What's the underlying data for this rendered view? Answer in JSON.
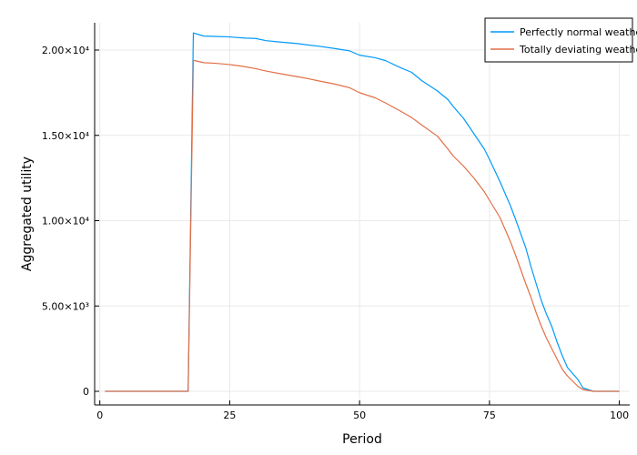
{
  "chart_data": {
    "type": "line",
    "xlabel": "Period",
    "ylabel": "Aggregated utility",
    "xlim": [
      -1,
      102
    ],
    "ylim": [
      -800,
      21600
    ],
    "xticks": [
      0,
      25,
      50,
      75,
      100
    ],
    "xtick_labels": [
      "0",
      "25",
      "50",
      "75",
      "100"
    ],
    "yticks": [
      0,
      5000,
      10000,
      15000,
      20000
    ],
    "ytick_labels": [
      "0",
      "5.00×10³",
      "1.00×10⁴",
      "1.50×10⁴",
      "2.00×10⁴"
    ],
    "grid": true,
    "legend_position": "top-right",
    "series": [
      {
        "name": "Perfectly normal weather",
        "color": "#009AFA",
        "points": [
          [
            1,
            0
          ],
          [
            17,
            0
          ],
          [
            17,
            0
          ],
          [
            18,
            21000
          ],
          [
            20,
            20820
          ],
          [
            22,
            20800
          ],
          [
            25,
            20770
          ],
          [
            28,
            20700
          ],
          [
            30,
            20680
          ],
          [
            32,
            20550
          ],
          [
            35,
            20460
          ],
          [
            38,
            20380
          ],
          [
            40,
            20300
          ],
          [
            42,
            20230
          ],
          [
            45,
            20100
          ],
          [
            48,
            19960
          ],
          [
            50,
            19700
          ],
          [
            53,
            19550
          ],
          [
            55,
            19380
          ],
          [
            58,
            18950
          ],
          [
            60,
            18700
          ],
          [
            62,
            18200
          ],
          [
            65,
            17600
          ],
          [
            67,
            17100
          ],
          [
            68,
            16700
          ],
          [
            70,
            16000
          ],
          [
            72,
            15100
          ],
          [
            74,
            14200
          ],
          [
            75,
            13600
          ],
          [
            77,
            12300
          ],
          [
            79,
            10900
          ],
          [
            80,
            10100
          ],
          [
            82,
            8400
          ],
          [
            83,
            7300
          ],
          [
            84,
            6300
          ],
          [
            85,
            5300
          ],
          [
            86,
            4500
          ],
          [
            87,
            3800
          ],
          [
            88,
            2900
          ],
          [
            89,
            2100
          ],
          [
            90,
            1400
          ],
          [
            92,
            700
          ],
          [
            93,
            200
          ],
          [
            95,
            0
          ],
          [
            100,
            0
          ]
        ]
      },
      {
        "name": "Totally deviating weather",
        "color": "#E26F46",
        "points": [
          [
            1,
            0
          ],
          [
            17,
            0
          ],
          [
            17,
            0
          ],
          [
            18,
            19400
          ],
          [
            20,
            19260
          ],
          [
            22,
            19230
          ],
          [
            25,
            19150
          ],
          [
            28,
            19020
          ],
          [
            30,
            18910
          ],
          [
            32,
            18770
          ],
          [
            35,
            18600
          ],
          [
            38,
            18440
          ],
          [
            40,
            18330
          ],
          [
            42,
            18200
          ],
          [
            45,
            18020
          ],
          [
            48,
            17800
          ],
          [
            50,
            17500
          ],
          [
            53,
            17200
          ],
          [
            55,
            16900
          ],
          [
            58,
            16400
          ],
          [
            60,
            16050
          ],
          [
            62,
            15600
          ],
          [
            65,
            14950
          ],
          [
            67,
            14200
          ],
          [
            68,
            13800
          ],
          [
            70,
            13200
          ],
          [
            72,
            12500
          ],
          [
            74,
            11700
          ],
          [
            75,
            11200
          ],
          [
            77,
            10200
          ],
          [
            79,
            8800
          ],
          [
            80,
            8000
          ],
          [
            82,
            6300
          ],
          [
            83,
            5500
          ],
          [
            84,
            4600
          ],
          [
            85,
            3800
          ],
          [
            86,
            3100
          ],
          [
            87,
            2500
          ],
          [
            88,
            1900
          ],
          [
            89,
            1300
          ],
          [
            90,
            900
          ],
          [
            92,
            300
          ],
          [
            93,
            100
          ],
          [
            95,
            0
          ],
          [
            100,
            0
          ]
        ]
      }
    ]
  }
}
